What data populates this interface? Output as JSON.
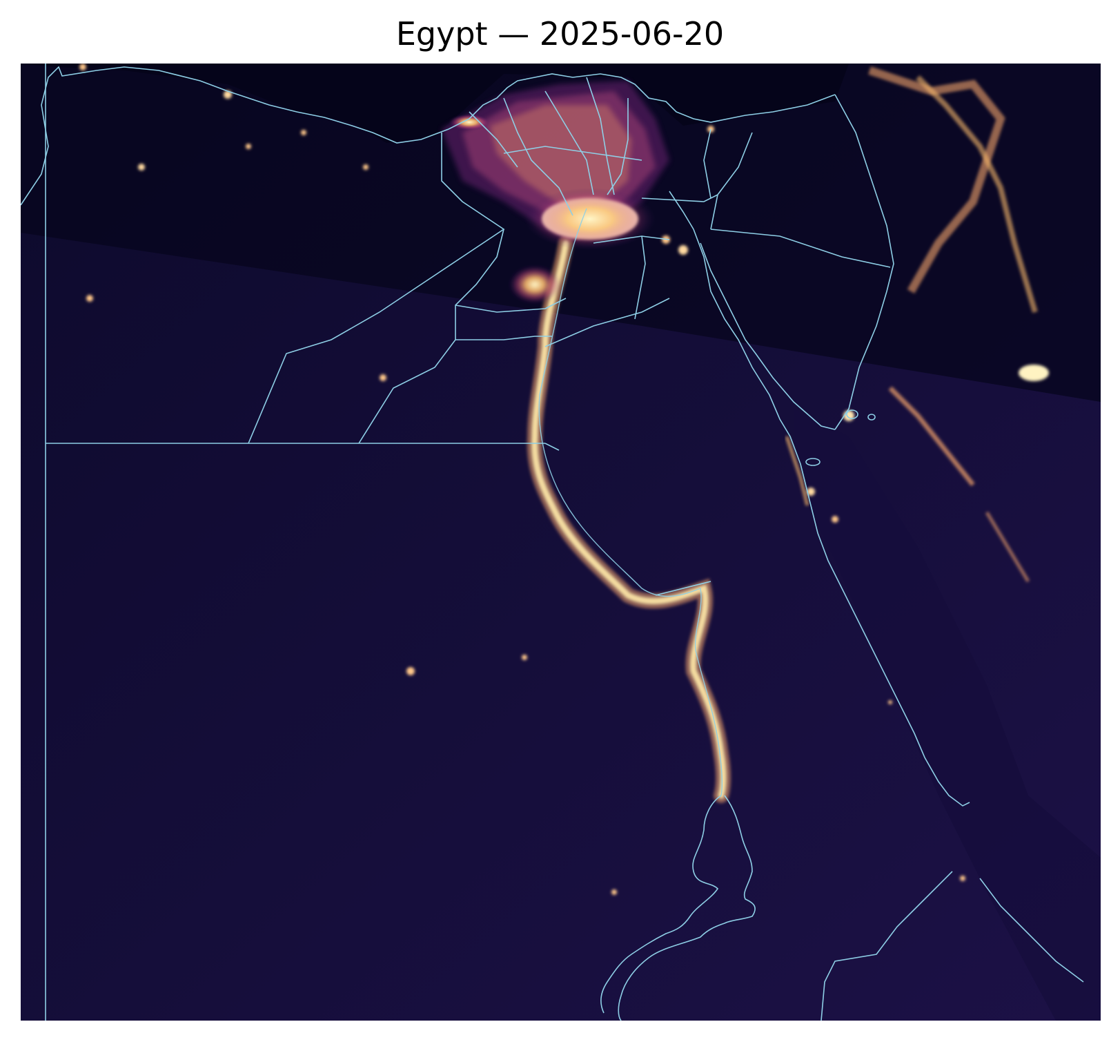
{
  "title": "Egypt — 2025-06-20",
  "colors": {
    "background_dark": "#0f0a2e",
    "background_north": "#07051d",
    "border_line": "#8ecfe6",
    "light_core": "#fff0b4",
    "light_mid": "#f08a5a",
    "light_outer": "#8b2c8e"
  }
}
